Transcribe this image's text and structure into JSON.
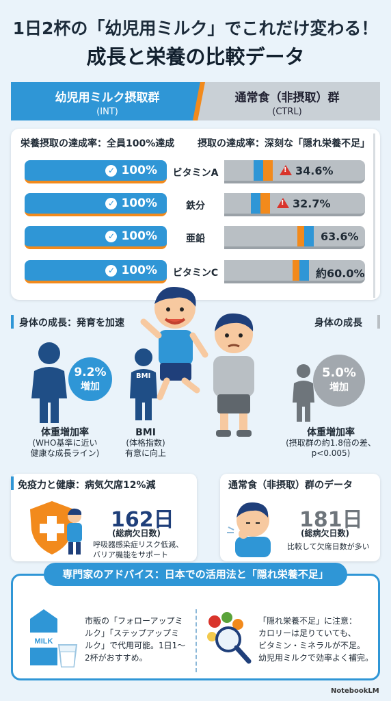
{
  "title": {
    "line1": "1日2杯の「幼児用ミルク」でこれだけ変わる！",
    "line2": "成長と栄養の比較データ"
  },
  "groups": {
    "int": {
      "label": "幼児用ミルク摂取群",
      "code": "(INT)"
    },
    "ctrl": {
      "label": "通常食（非摂取）群",
      "code": "(CTRL)"
    }
  },
  "nutrition": {
    "int_title": "栄養摂取の達成率：全員100%達成",
    "ctrl_title": "摂取の達成率：深刻な「隠れ栄養不足」",
    "rows": [
      {
        "nutrient": "ビタミンA",
        "int": "100%",
        "ctrl": "34.6%",
        "ctrl_value": 34.6,
        "warning": true
      },
      {
        "nutrient": "鉄分",
        "int": "100%",
        "ctrl": "32.7%",
        "ctrl_value": 32.7,
        "warning": true
      },
      {
        "nutrient": "亜鉛",
        "int": "100%",
        "ctrl": "63.6%",
        "ctrl_value": 63.6,
        "warning": false
      },
      {
        "nutrient": "ビタミンC",
        "int": "100%",
        "ctrl": "約60.0%",
        "ctrl_value": 60.0,
        "warning": false
      }
    ]
  },
  "growth": {
    "int_title": "身体の成長：発育を加速",
    "ctrl_title": "身体の成長",
    "int_pct": "9.2%",
    "int_pct_label": "増加",
    "bmi_badge": "BMI",
    "int_weight_caption": "体重増加率",
    "int_weight_note1": "(WHO基準に近い",
    "int_weight_note2": "健康な成長ライン)",
    "bmi_caption": "BMI",
    "bmi_note1": "(体格指数)",
    "bmi_note2": "有意に向上",
    "ctrl_pct": "5.0%",
    "ctrl_pct_label": "増加",
    "ctrl_weight_caption": "体重増加率",
    "ctrl_weight_note1": "(摂取群の約1.8倍の差、",
    "ctrl_weight_note2": "p<0.005)"
  },
  "immunity": {
    "int_title": "免疫力と健康：病気欠席12%減",
    "int_days": "162日",
    "int_days_label": "(総病欠日数)",
    "int_note1": "呼吸器感染症リスク低減、",
    "int_note2": "バリア機能をサポート",
    "ctrl_title": "通常食（非摂取）群のデータ",
    "ctrl_days": "181日",
    "ctrl_days_label": "(総病欠日数)",
    "ctrl_note": "比較して欠席日数が多い"
  },
  "advice": {
    "title": "専門家のアドバイス：日本での活用法と「隠れ栄養不足」",
    "milk_label": "MILK",
    "left": [
      "市販の「フォローアップミ",
      "ルク」「ステップアップミ",
      "ルク」で代用可能。1日1～",
      "2杯がおすすめ。"
    ],
    "right": [
      "「隠れ栄養不足」に注意：",
      "カロリーは足りていても、",
      "ビタミン・ミネラルが不足。",
      "幼児用ミルクで効率よく補完。"
    ]
  },
  "footer": "NotebookLM",
  "colors": {
    "blue": "#2f96d6",
    "orange": "#f28a1c",
    "grey": "#b9bfc4",
    "red": "#d9342b"
  },
  "icons": [
    "check-icon",
    "warning-icon",
    "shield-cross-icon",
    "milk-carton-icon",
    "milk-glass-icon",
    "magnifier-food-icon",
    "person-silhouette-icon"
  ]
}
